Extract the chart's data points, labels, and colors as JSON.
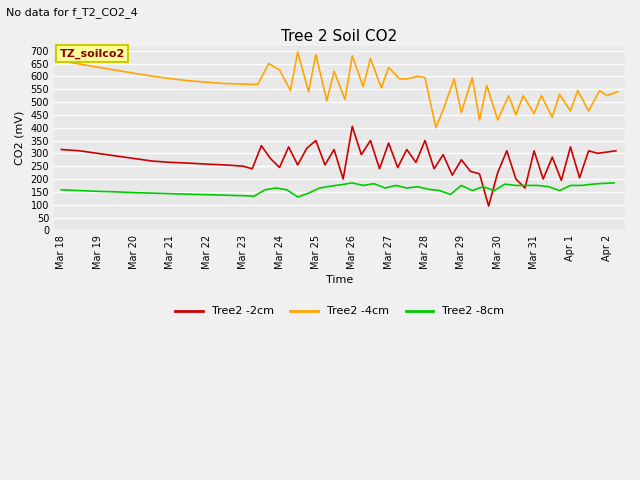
{
  "title": "Tree 2 Soil CO2",
  "subtitle": "No data for f_T2_CO2_4",
  "ylabel": "CO2 (mV)",
  "xlabel": "Time",
  "ylim": [
    0,
    720
  ],
  "yticks": [
    0,
    50,
    100,
    150,
    200,
    250,
    300,
    350,
    400,
    450,
    500,
    550,
    600,
    650,
    700
  ],
  "xtick_labels": [
    "Mar 18",
    "Mar 19",
    "Mar 20",
    "Mar 21",
    "Mar 22",
    "Mar 23",
    "Mar 24",
    "Mar 25",
    "Mar 26",
    "Mar 27",
    "Mar 28",
    "Mar 29",
    "Mar 30",
    "Mar 31",
    "Apr 1",
    "Apr 2"
  ],
  "xtick_positions": [
    0,
    1,
    2,
    3,
    4,
    5,
    6,
    7,
    8,
    9,
    10,
    11,
    12,
    13,
    14,
    15
  ],
  "fig_bg_color": "#f0f0f0",
  "plot_bg_color": "#e8e8e8",
  "grid_color": "#ffffff",
  "annotation_box_color": "#ffff99",
  "annotation_box_text": "TZ_soilco2",
  "annotation_box_edge": "#cccc00",
  "legend_labels": [
    "Tree2 -2cm",
    "Tree2 -4cm",
    "Tree2 -8cm"
  ],
  "line_colors": [
    "#cc0000",
    "#ffa500",
    "#00cc00"
  ],
  "title_fontsize": 11,
  "subtitle_fontsize": 8,
  "tick_fontsize": 7,
  "label_fontsize": 8,
  "legend_fontsize": 8,
  "annot_fontsize": 8,
  "series_red_x": [
    0,
    0.5,
    1.0,
    1.5,
    2.0,
    2.5,
    3.0,
    3.5,
    4.0,
    4.5,
    5.0,
    5.25,
    5.5,
    5.75,
    6.0,
    6.25,
    6.5,
    6.75,
    7.0,
    7.25,
    7.5,
    7.75,
    8.0,
    8.25,
    8.5,
    8.75,
    9.0,
    9.25,
    9.5,
    9.75,
    10.0,
    10.25,
    10.5,
    10.75,
    11.0,
    11.25,
    11.5,
    11.75,
    12.0,
    12.25,
    12.5,
    12.75,
    13.0,
    13.25,
    13.5,
    13.75,
    14.0,
    14.25,
    14.5,
    14.75,
    15.0,
    15.25
  ],
  "series_red_y": [
    315,
    310,
    300,
    290,
    280,
    270,
    265,
    262,
    258,
    255,
    250,
    240,
    330,
    280,
    245,
    325,
    255,
    320,
    350,
    255,
    315,
    200,
    405,
    295,
    350,
    240,
    340,
    245,
    315,
    265,
    350,
    240,
    295,
    215,
    275,
    230,
    220,
    95,
    225,
    310,
    200,
    165,
    310,
    200,
    285,
    195,
    325,
    205,
    310,
    300,
    305,
    310
  ],
  "series_orange_x": [
    0,
    0.5,
    1.0,
    1.5,
    2.0,
    2.5,
    3.0,
    3.5,
    4.0,
    4.5,
    5.0,
    5.4,
    5.7,
    6.0,
    6.3,
    6.5,
    6.8,
    7.0,
    7.3,
    7.5,
    7.8,
    8.0,
    8.3,
    8.5,
    8.8,
    9.0,
    9.3,
    9.5,
    9.8,
    10.0,
    10.3,
    10.5,
    10.8,
    11.0,
    11.3,
    11.5,
    11.7,
    12.0,
    12.3,
    12.5,
    12.7,
    13.0,
    13.2,
    13.5,
    13.7,
    14.0,
    14.2,
    14.5,
    14.8,
    15.0,
    15.3
  ],
  "series_orange_y": [
    660,
    648,
    636,
    624,
    612,
    601,
    591,
    583,
    577,
    572,
    570,
    568,
    650,
    625,
    545,
    695,
    540,
    685,
    505,
    620,
    510,
    680,
    560,
    670,
    555,
    635,
    590,
    590,
    600,
    595,
    400,
    470,
    590,
    460,
    595,
    430,
    565,
    430,
    525,
    450,
    525,
    455,
    525,
    440,
    530,
    465,
    545,
    465,
    545,
    525,
    540
  ],
  "series_green_x": [
    0,
    0.5,
    1.0,
    1.5,
    2.0,
    2.5,
    3.0,
    3.5,
    4.0,
    4.5,
    5.0,
    5.3,
    5.6,
    5.9,
    6.2,
    6.5,
    6.8,
    7.1,
    7.4,
    7.7,
    8.0,
    8.3,
    8.6,
    8.9,
    9.2,
    9.5,
    9.8,
    10.1,
    10.4,
    10.7,
    11.0,
    11.3,
    11.6,
    11.9,
    12.2,
    12.5,
    12.8,
    13.1,
    13.4,
    13.7,
    14.0,
    14.3,
    14.6,
    14.9,
    15.2
  ],
  "series_green_y": [
    158,
    155,
    152,
    150,
    147,
    145,
    143,
    141,
    139,
    137,
    135,
    133,
    158,
    165,
    158,
    130,
    145,
    165,
    172,
    178,
    185,
    175,
    182,
    165,
    175,
    165,
    170,
    160,
    155,
    140,
    175,
    155,
    170,
    155,
    180,
    175,
    175,
    175,
    170,
    155,
    175,
    175,
    180,
    183,
    185
  ]
}
